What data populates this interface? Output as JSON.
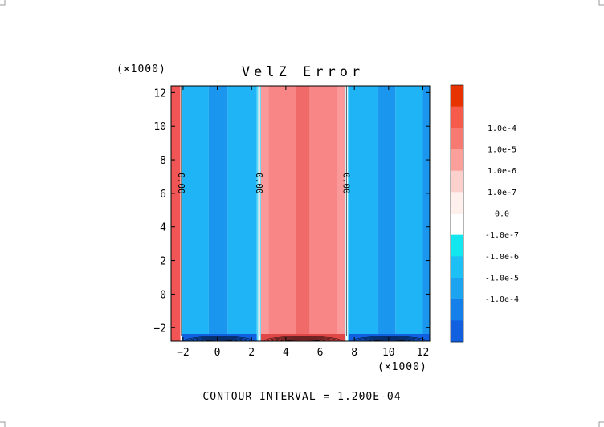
{
  "chart_data": {
    "type": "heatmap",
    "title": "VelZ Error",
    "x_multiplier": "(×1000)",
    "y_multiplier": "(×1000)",
    "xlim": [
      -2.7,
      12.4
    ],
    "ylim": [
      -2.8,
      12.4
    ],
    "x_ticks": [
      {
        "v": -2,
        "label": "−2"
      },
      {
        "v": 0,
        "label": "0"
      },
      {
        "v": 2,
        "label": "2"
      },
      {
        "v": 4,
        "label": "4"
      },
      {
        "v": 6,
        "label": "6"
      },
      {
        "v": 8,
        "label": "8"
      },
      {
        "v": 10,
        "label": "10"
      },
      {
        "v": 12,
        "label": "12"
      }
    ],
    "y_ticks": [
      {
        "v": -2,
        "label": "−2"
      },
      {
        "v": 0,
        "label": "0"
      },
      {
        "v": 2,
        "label": "2"
      },
      {
        "v": 4,
        "label": "4"
      },
      {
        "v": 6,
        "label": "6"
      },
      {
        "v": 8,
        "label": "8"
      },
      {
        "v": 10,
        "label": "10"
      },
      {
        "v": 12,
        "label": "12"
      }
    ],
    "bands": [
      {
        "x0": -2.7,
        "x1": -2.1,
        "color": "#f25555"
      },
      {
        "x0": -2.1,
        "x1": -0.5,
        "color": "#1eb4f5"
      },
      {
        "x0": -0.5,
        "x1": 0.6,
        "color": "#1a96ee"
      },
      {
        "x0": 0.6,
        "x1": 2.3,
        "color": "#1eb4f5"
      },
      {
        "x0": 2.3,
        "x1": 2.55,
        "color": "#5ad8f8"
      },
      {
        "x0": 2.55,
        "x1": 3.0,
        "color": "#fa9999"
      },
      {
        "x0": 3.0,
        "x1": 4.6,
        "color": "#f98686"
      },
      {
        "x0": 4.6,
        "x1": 5.4,
        "color": "#f06a6a"
      },
      {
        "x0": 5.4,
        "x1": 7.0,
        "color": "#f98686"
      },
      {
        "x0": 7.0,
        "x1": 7.45,
        "color": "#fa9999"
      },
      {
        "x0": 7.45,
        "x1": 7.7,
        "color": "#5ad8f8"
      },
      {
        "x0": 7.7,
        "x1": 9.4,
        "color": "#1eb4f5"
      },
      {
        "x0": 9.4,
        "x1": 10.4,
        "color": "#1a96ee"
      },
      {
        "x0": 10.4,
        "x1": 12.0,
        "color": "#1eb4f5"
      },
      {
        "x0": 12.0,
        "x1": 12.4,
        "color": "#1a96ee"
      }
    ],
    "zero_contours": [
      {
        "x": -2.1,
        "label": "0.00",
        "label_y": 6.6
      },
      {
        "x": 2.45,
        "label": "0.00",
        "label_y": 6.6
      },
      {
        "x": 7.55,
        "label": "0.00",
        "label_y": 6.6
      }
    ],
    "colorbar": {
      "levels": [
        {
          "label": "",
          "color": "#e63300"
        },
        {
          "label": "1.0e-4",
          "color": "#f55a4a"
        },
        {
          "label": "1.0e-5",
          "color": "#f77a72"
        },
        {
          "label": "1.0e-6",
          "color": "#fa9f9a"
        },
        {
          "label": "1.0e-7",
          "color": "#fcd0cc"
        },
        {
          "label": "0.0",
          "color": "#fff0ee"
        },
        {
          "label": "-1.0e-7",
          "color": "#ffffff"
        },
        {
          "label": "-1.0e-6",
          "color": "#12e6ee"
        },
        {
          "label": "-1.0e-5",
          "color": "#1cc0f4"
        },
        {
          "label": "-1.0e-4",
          "color": "#1ca4f0"
        },
        {
          "label": "",
          "color": "#1680ea"
        },
        {
          "label": "",
          "color": "#1060e0"
        }
      ]
    },
    "footer": "CONTOUR INTERVAL = 1.200E-04"
  }
}
